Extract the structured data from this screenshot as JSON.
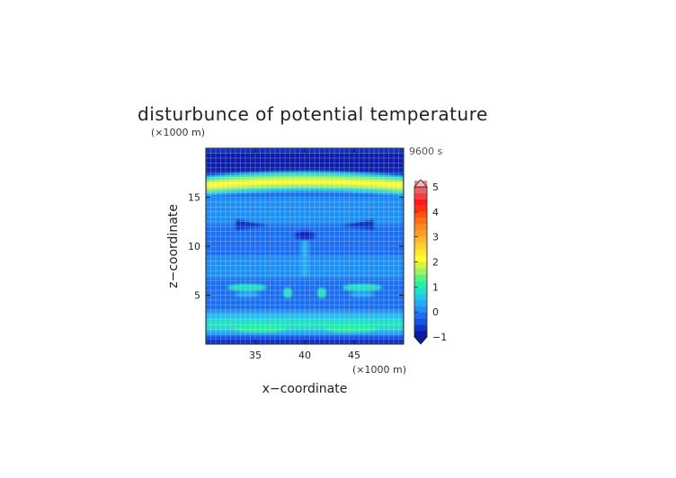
{
  "chart_data": {
    "type": "heatmap",
    "title": "disturbunce of potential temperature",
    "time_label": "9600 s",
    "xlabel": "x−coordinate",
    "ylabel": "z−coordinate",
    "x_unit": "(×1000 m)",
    "y_unit": "(×1000 m)",
    "xlim": [
      30,
      50
    ],
    "ylim": [
      0,
      20
    ],
    "x_ticks": [
      "35",
      "40",
      "45"
    ],
    "y_ticks": [
      "5",
      "10",
      "15"
    ],
    "colorbar": {
      "min": -1,
      "max": 5,
      "step": 0.25,
      "tick_labels": [
        "−1",
        "0",
        "1",
        "2",
        "3",
        "4",
        "5"
      ],
      "colors": [
        "#0a1aa8",
        "#0f33c8",
        "#1850e0",
        "#1c6ef0",
        "#1f8ef5",
        "#23aaf5",
        "#20c8e8",
        "#20e0c0",
        "#28f0a0",
        "#60f080",
        "#a0f060",
        "#d8f040",
        "#ffff30",
        "#ffe830",
        "#ffd030",
        "#ffb830",
        "#ffa020",
        "#ff8820",
        "#ff7010",
        "#ff5010",
        "#ff3010",
        "#ff1818",
        "#f04040",
        "#f06060",
        "#f08080"
      ],
      "over_color": "#f4b8c0",
      "under_color": "#0a1aa8"
    },
    "grid": true
  }
}
